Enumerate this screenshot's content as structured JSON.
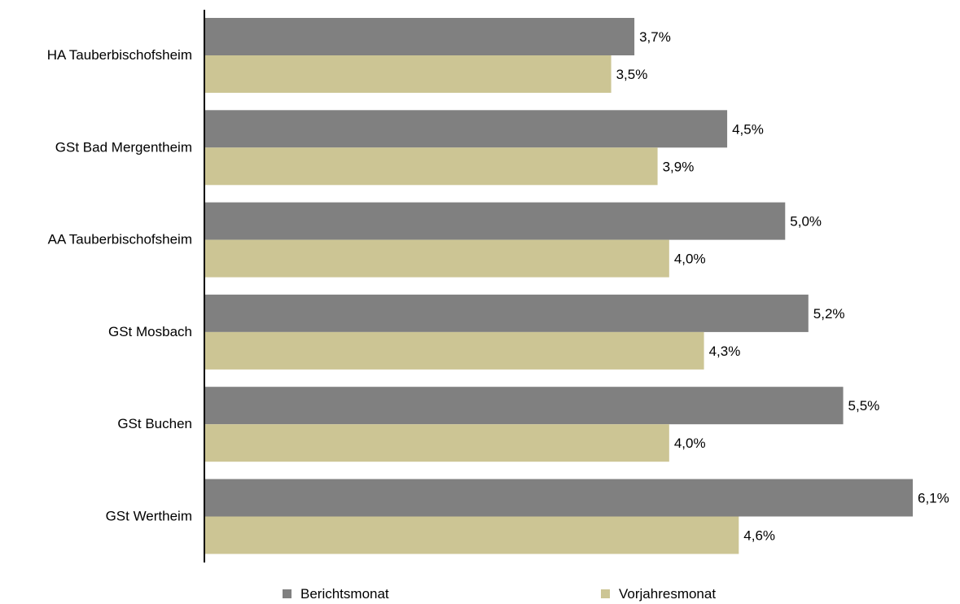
{
  "chart_data": {
    "type": "bar",
    "orientation": "horizontal",
    "categories": [
      "HA Tauberbischofsheim",
      "GSt Bad Mergentheim",
      "AA Tauberbischofsheim",
      "GSt Mosbach",
      "GSt Buchen",
      "GSt Wertheim"
    ],
    "series": [
      {
        "name": "Berichtsmonat",
        "color": "#808080",
        "values": [
          3.7,
          4.5,
          5.0,
          5.2,
          5.5,
          6.1
        ],
        "labels": [
          "3,7%",
          "4,5%",
          "5,0%",
          "5,2%",
          "5,5%",
          "6,1%"
        ]
      },
      {
        "name": "Vorjahresmonat",
        "color": "#CCC594",
        "values": [
          3.5,
          3.9,
          4.0,
          4.3,
          4.0,
          4.6
        ],
        "labels": [
          "3,5%",
          "3,9%",
          "4,0%",
          "4,3%",
          "4,0%",
          "4,6%"
        ]
      }
    ],
    "xlim": [
      0,
      6.1
    ],
    "grid": false,
    "legend_position": "bottom"
  }
}
